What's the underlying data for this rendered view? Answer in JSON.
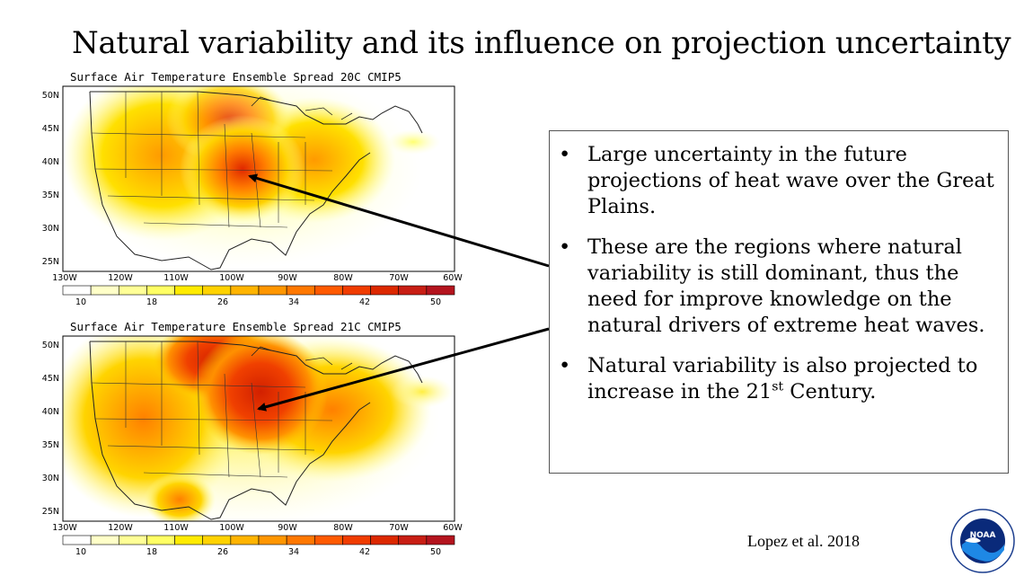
{
  "slide": {
    "title": "Natural variability and its influence on projection uncertainty",
    "citation": "Lopez et al. 2018"
  },
  "panels": [
    {
      "id": "top",
      "title": "Surface Air Temperature Ensemble Spread 20C CMIP5",
      "lat_labels": [
        "50N",
        "45N",
        "40N",
        "35N",
        "30N",
        "25N"
      ],
      "lon_labels": [
        "130W",
        "120W",
        "110W",
        "100W",
        "90W",
        "80W",
        "70W",
        "60W"
      ],
      "colorbar_labels": [
        "10",
        "18",
        "26",
        "34",
        "42",
        "50"
      ]
    },
    {
      "id": "bottom",
      "title": "Surface Air Temperature Ensemble Spread 21C CMIP5",
      "lat_labels": [
        "50N",
        "45N",
        "40N",
        "35N",
        "30N",
        "25N"
      ],
      "lon_labels": [
        "130W",
        "120W",
        "110W",
        "100W",
        "90W",
        "80W",
        "70W",
        "60W"
      ],
      "colorbar_labels": [
        "10",
        "18",
        "26",
        "34",
        "42",
        "50"
      ]
    }
  ],
  "colorbar_colors": [
    "#ffffff",
    "#ffffc8",
    "#ffff96",
    "#ffff64",
    "#ffeb00",
    "#ffd200",
    "#ffb400",
    "#ff9600",
    "#ff7800",
    "#ff5a00",
    "#f03c00",
    "#dc2800",
    "#c81e14",
    "#b4141e"
  ],
  "bullets": [
    {
      "text": "Large uncertainty in the future projections of heat wave over the Great Plains."
    },
    {
      "text": "These are the regions where natural variability is still dominant, thus the need for improve knowledge on the natural drivers of extreme heat waves."
    },
    {
      "text_before": "Natural variability is also projected to increase in the 21",
      "sup": "st",
      "text_after": " Century."
    }
  ],
  "bullet_glyph": "•",
  "logo": {
    "text": "NOAA",
    "icon": "noaa-logo-icon"
  }
}
